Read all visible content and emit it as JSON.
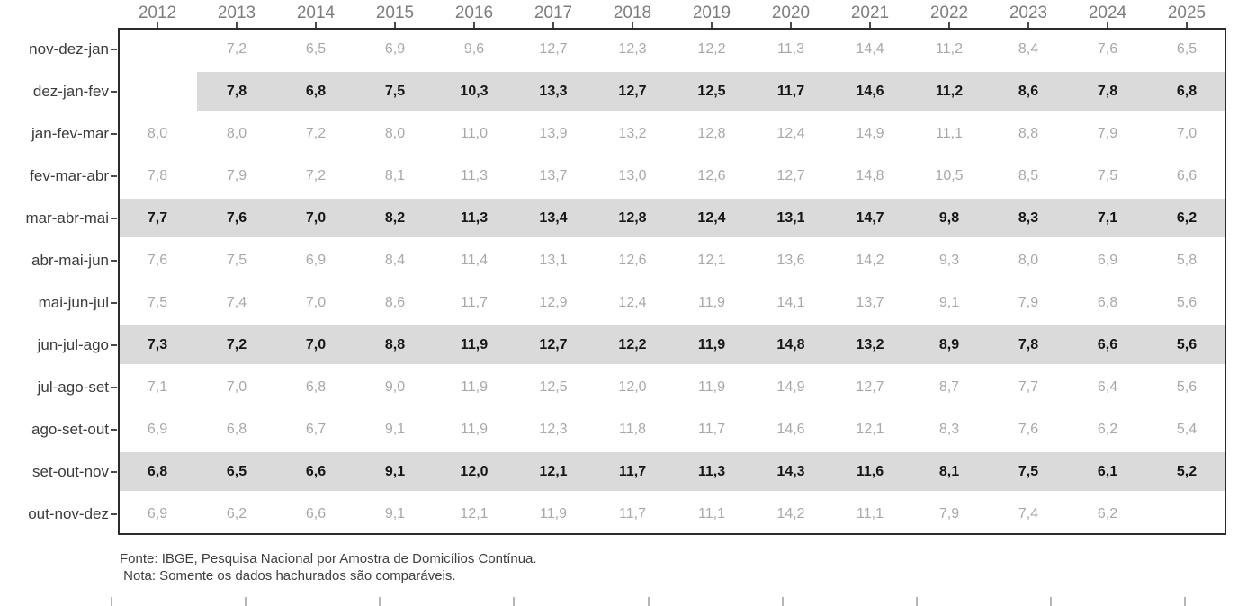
{
  "chart_data": {
    "type": "table",
    "title": "",
    "columns": [
      "2012",
      "2013",
      "2014",
      "2015",
      "2016",
      "2017",
      "2018",
      "2019",
      "2020",
      "2021",
      "2022",
      "2023",
      "2024",
      "2025"
    ],
    "rows": [
      {
        "label": "nov-dez-jan",
        "shaded": false,
        "values": [
          "",
          "7,2",
          "6,5",
          "6,9",
          "9,6",
          "12,7",
          "12,3",
          "12,2",
          "11,3",
          "14,4",
          "11,2",
          "8,4",
          "7,6",
          "6,5"
        ]
      },
      {
        "label": "dez-jan-fev",
        "shaded": true,
        "values": [
          "",
          "7,8",
          "6,8",
          "7,5",
          "10,3",
          "13,3",
          "12,7",
          "12,5",
          "11,7",
          "14,6",
          "11,2",
          "8,6",
          "7,8",
          "6,8"
        ]
      },
      {
        "label": "jan-fev-mar",
        "shaded": false,
        "values": [
          "8,0",
          "8,0",
          "7,2",
          "8,0",
          "11,0",
          "13,9",
          "13,2",
          "12,8",
          "12,4",
          "14,9",
          "11,1",
          "8,8",
          "7,9",
          "7,0"
        ]
      },
      {
        "label": "fev-mar-abr",
        "shaded": false,
        "values": [
          "7,8",
          "7,9",
          "7,2",
          "8,1",
          "11,3",
          "13,7",
          "13,0",
          "12,6",
          "12,7",
          "14,8",
          "10,5",
          "8,5",
          "7,5",
          "6,6"
        ]
      },
      {
        "label": "mar-abr-mai",
        "shaded": true,
        "values": [
          "7,7",
          "7,6",
          "7,0",
          "8,2",
          "11,3",
          "13,4",
          "12,8",
          "12,4",
          "13,1",
          "14,7",
          "9,8",
          "8,3",
          "7,1",
          "6,2"
        ]
      },
      {
        "label": "abr-mai-jun",
        "shaded": false,
        "values": [
          "7,6",
          "7,5",
          "6,9",
          "8,4",
          "11,4",
          "13,1",
          "12,6",
          "12,1",
          "13,6",
          "14,2",
          "9,3",
          "8,0",
          "6,9",
          "5,8"
        ]
      },
      {
        "label": "mai-jun-jul",
        "shaded": false,
        "values": [
          "7,5",
          "7,4",
          "7,0",
          "8,6",
          "11,7",
          "12,9",
          "12,4",
          "11,9",
          "14,1",
          "13,7",
          "9,1",
          "7,9",
          "6,8",
          "5,6"
        ]
      },
      {
        "label": "jun-jul-ago",
        "shaded": true,
        "values": [
          "7,3",
          "7,2",
          "7,0",
          "8,8",
          "11,9",
          "12,7",
          "12,2",
          "11,9",
          "14,8",
          "13,2",
          "8,9",
          "7,8",
          "6,6",
          "5,6"
        ]
      },
      {
        "label": "jul-ago-set",
        "shaded": false,
        "values": [
          "7,1",
          "7,0",
          "6,8",
          "9,0",
          "11,9",
          "12,5",
          "12,0",
          "11,9",
          "14,9",
          "12,7",
          "8,7",
          "7,7",
          "6,4",
          "5,6"
        ]
      },
      {
        "label": "ago-set-out",
        "shaded": false,
        "values": [
          "6,9",
          "6,8",
          "6,7",
          "9,1",
          "11,9",
          "12,3",
          "11,8",
          "11,7",
          "14,6",
          "12,1",
          "8,3",
          "7,6",
          "6,2",
          "5,4"
        ]
      },
      {
        "label": "set-out-nov",
        "shaded": true,
        "values": [
          "6,8",
          "6,5",
          "6,6",
          "9,1",
          "12,0",
          "12,1",
          "11,7",
          "11,3",
          "14,3",
          "11,6",
          "8,1",
          "7,5",
          "6,1",
          "5,2"
        ]
      },
      {
        "label": "out-nov-dez",
        "shaded": false,
        "values": [
          "6,9",
          "6,2",
          "6,6",
          "9,1",
          "12,1",
          "11,9",
          "11,7",
          "11,1",
          "14,2",
          "11,1",
          "7,9",
          "7,4",
          "6,2",
          ""
        ]
      }
    ],
    "footer": [
      "Fonte: IBGE, Pesquisa Nacional por Amostra de Domicílios Contínua.",
      " Nota: Somente os dados hachurados são comparáveis."
    ],
    "colors": {
      "band": "#dadada",
      "value": "#a8a8a8",
      "value_bold": "#161616",
      "year_label": "#7d7d7d",
      "row_label": "#3c3c3c",
      "frame": "#2b2b2b",
      "tick": "#b6b6b6",
      "footer": "#3f3f3f"
    },
    "layout": {
      "legend": "none",
      "grid": "off",
      "shaded_rows_meaning": "dados hachurados (comparáveis)"
    },
    "bottom_axis_ticks_x": [
      123,
      272,
      421,
      570,
      720,
      869,
      1018,
      1167,
      1316
    ]
  }
}
